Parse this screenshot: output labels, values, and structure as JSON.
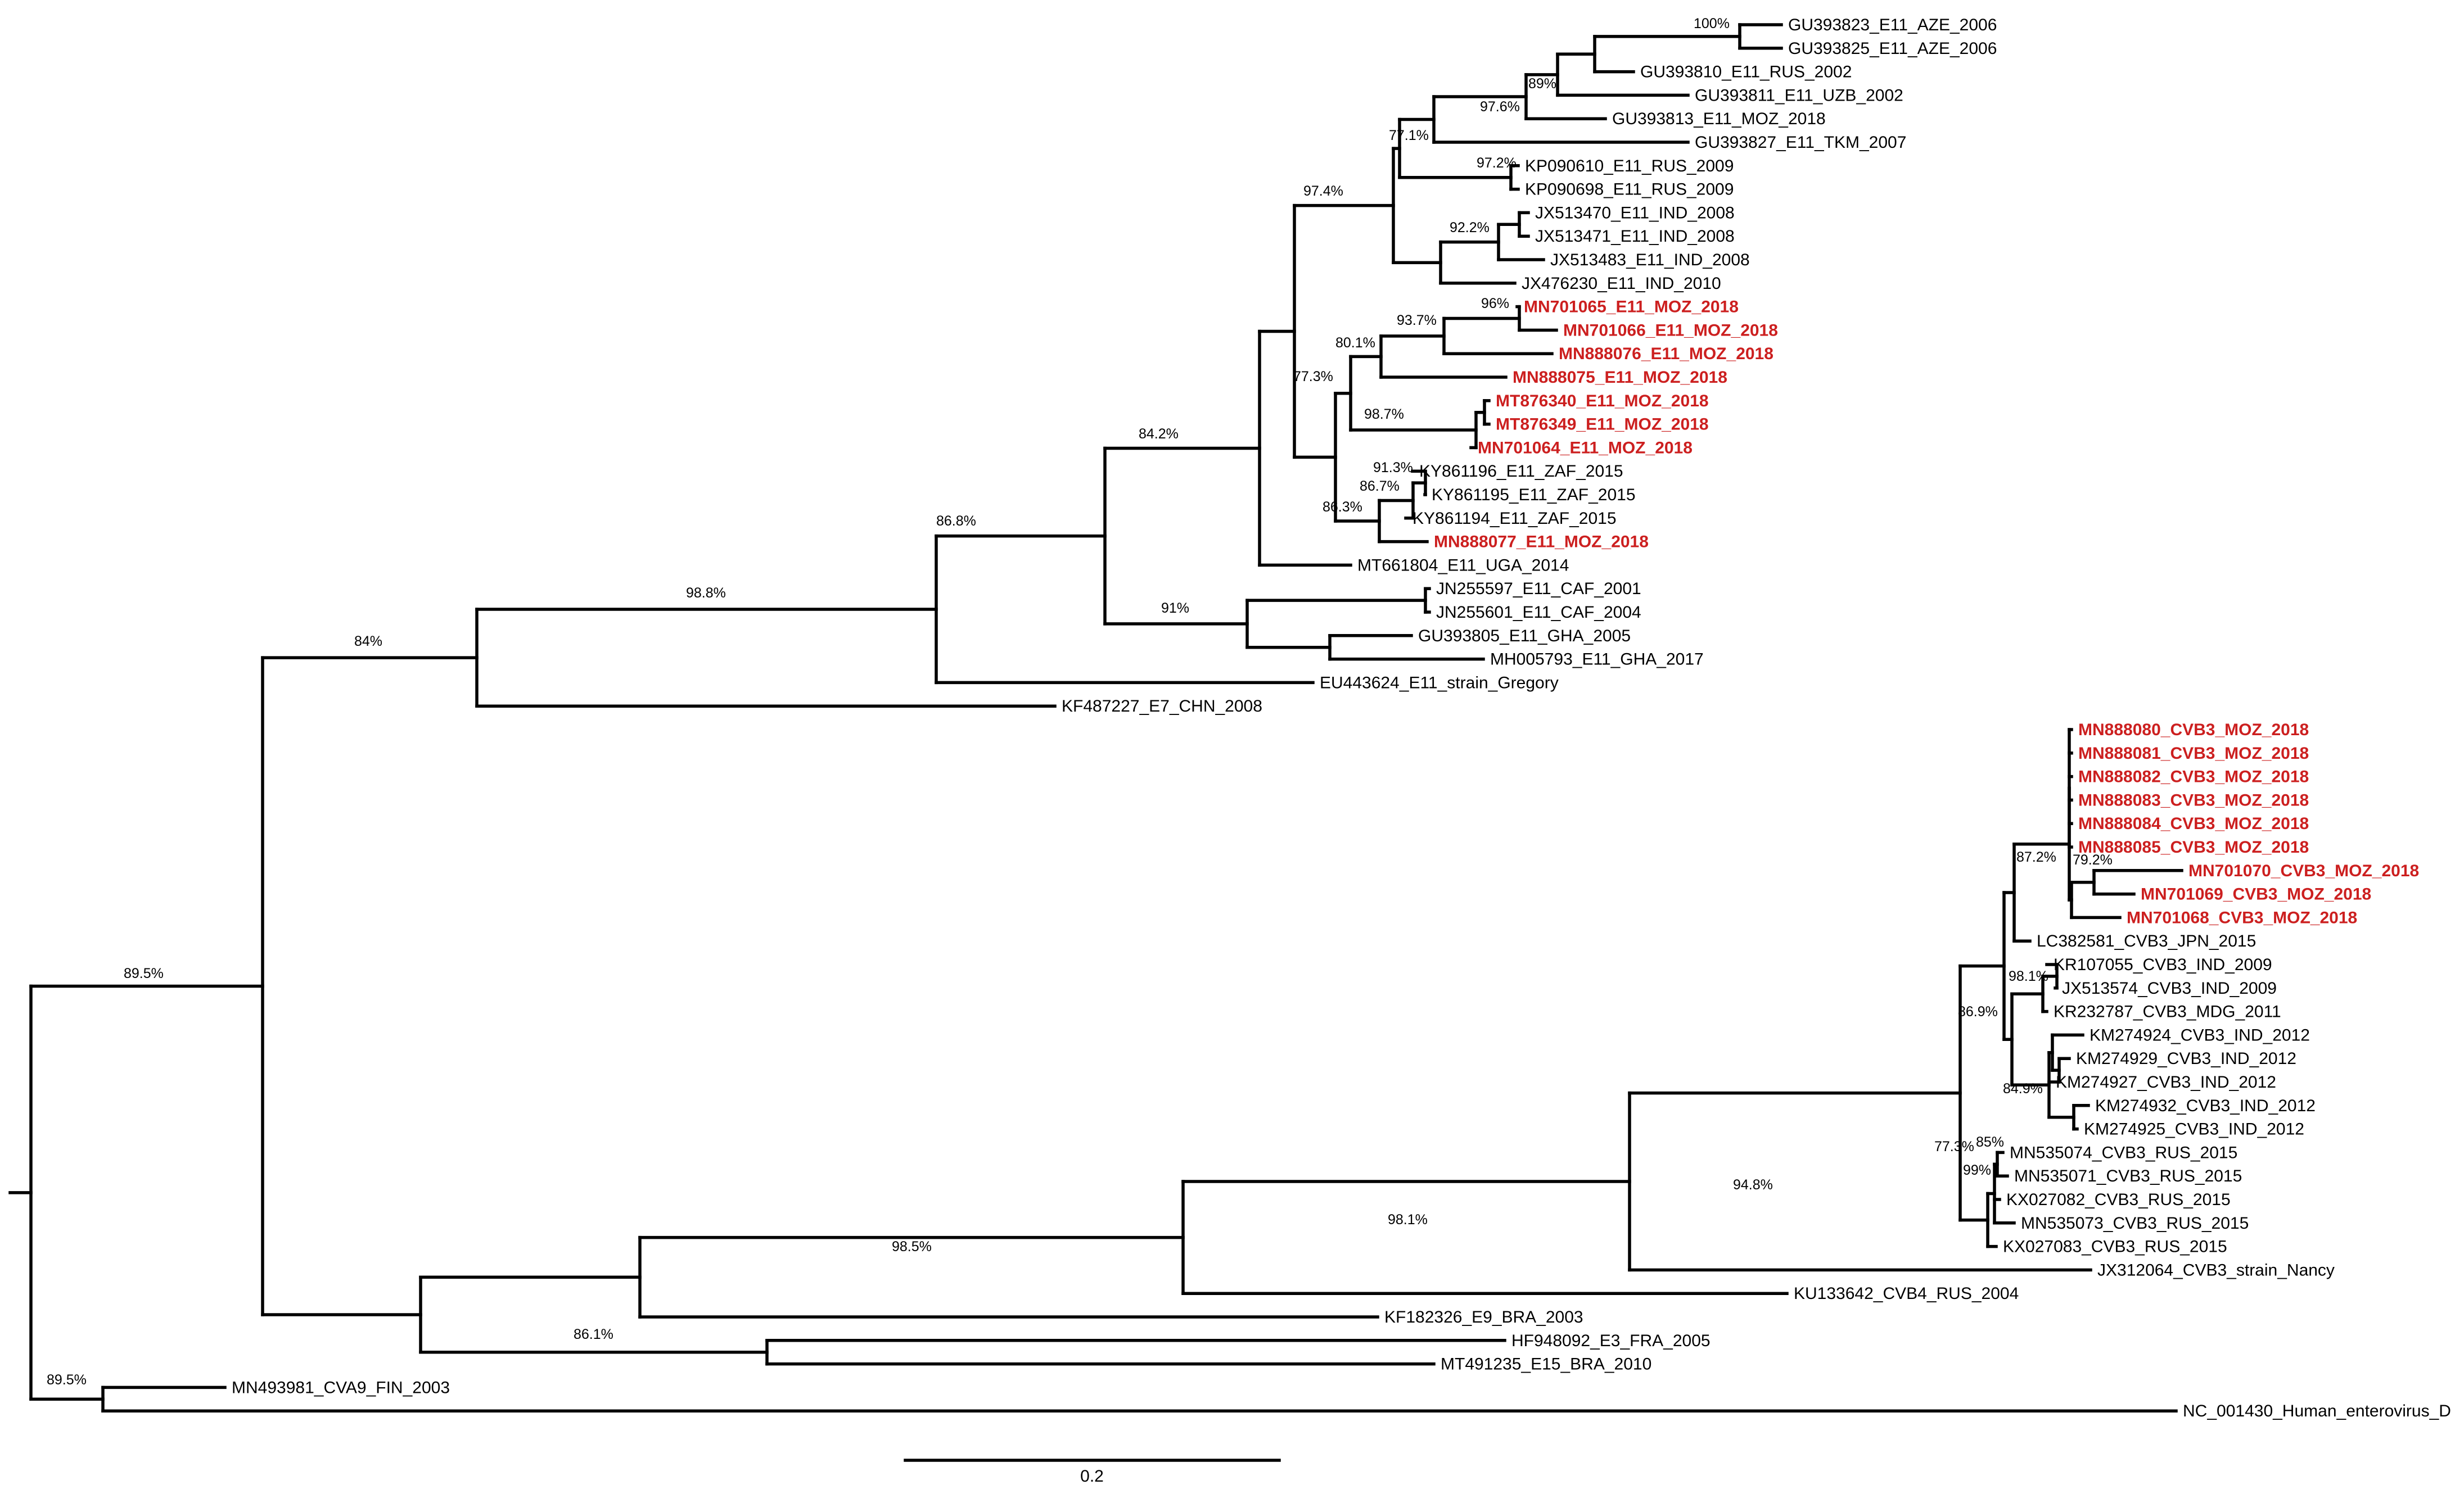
{
  "diagram": {
    "type": "phylogenetic-tree",
    "highlight_color": "#cc1f1f",
    "scale_bar_label": "0.2"
  },
  "tips": [
    {
      "id": "t1",
      "label": "GU393823_E11_AZE_2006"
    },
    {
      "id": "t2",
      "label": "GU393825_E11_AZE_2006"
    },
    {
      "id": "t3",
      "label": "GU393810_E11_RUS_2002"
    },
    {
      "id": "t4",
      "label": "GU393811_E11_UZB_2002"
    },
    {
      "id": "t5",
      "label": "GU393813_E11_MOZ_2018"
    },
    {
      "id": "t6",
      "label": "GU393827_E11_TKM_2007"
    },
    {
      "id": "t7",
      "label": "KP090610_E11_RUS_2009"
    },
    {
      "id": "t8",
      "label": "KP090698_E11_RUS_2009"
    },
    {
      "id": "t9",
      "label": "JX513470_E11_IND_2008"
    },
    {
      "id": "t10",
      "label": "JX513471_E11_IND_2008"
    },
    {
      "id": "t11",
      "label": "JX513483_E11_IND_2008"
    },
    {
      "id": "t12",
      "label": "JX476230_E11_IND_2010"
    },
    {
      "id": "t13",
      "label": "MN701065_E11_MOZ_2018",
      "highlight": true
    },
    {
      "id": "t14",
      "label": "MN701066_E11_MOZ_2018",
      "highlight": true
    },
    {
      "id": "t15",
      "label": "MN888076_E11_MOZ_2018",
      "highlight": true
    },
    {
      "id": "t16",
      "label": "MN888075_E11_MOZ_2018",
      "highlight": true
    },
    {
      "id": "t17",
      "label": "MT876340_E11_MOZ_2018",
      "highlight": true
    },
    {
      "id": "t18",
      "label": "MT876349_E11_MOZ_2018",
      "highlight": true
    },
    {
      "id": "t19",
      "label": "MN701064_E11_MOZ_2018",
      "highlight": true
    },
    {
      "id": "t20",
      "label": "KY861196_E11_ZAF_2015"
    },
    {
      "id": "t21",
      "label": "KY861195_E11_ZAF_2015"
    },
    {
      "id": "t22",
      "label": "KY861194_E11_ZAF_2015"
    },
    {
      "id": "t23",
      "label": "MN888077_E11_MOZ_2018",
      "highlight": true
    },
    {
      "id": "t24",
      "label": "MT661804_E11_UGA_2014"
    },
    {
      "id": "t25",
      "label": "JN255597_E11_CAF_2001"
    },
    {
      "id": "t26",
      "label": "JN255601_E11_CAF_2004"
    },
    {
      "id": "t27",
      "label": "GU393805_E11_GHA_2005"
    },
    {
      "id": "t28",
      "label": "MH005793_E11_GHA_2017"
    },
    {
      "id": "t29",
      "label": "EU443624_E11_strain_Gregory"
    },
    {
      "id": "t30",
      "label": "KF487227_E7_CHN_2008"
    },
    {
      "id": "t31",
      "label": "MN888080_CVB3_MOZ_2018",
      "highlight": true
    },
    {
      "id": "t32",
      "label": "MN888081_CVB3_MOZ_2018",
      "highlight": true
    },
    {
      "id": "t33",
      "label": "MN888082_CVB3_MOZ_2018",
      "highlight": true
    },
    {
      "id": "t34",
      "label": "MN888083_CVB3_MOZ_2018",
      "highlight": true
    },
    {
      "id": "t35",
      "label": "MN888084_CVB3_MOZ_2018",
      "highlight": true
    },
    {
      "id": "t36",
      "label": "MN888085_CVB3_MOZ_2018",
      "highlight": true
    },
    {
      "id": "t37",
      "label": "MN701070_CVB3_MOZ_2018",
      "highlight": true
    },
    {
      "id": "t38",
      "label": "MN701069_CVB3_MOZ_2018",
      "highlight": true
    },
    {
      "id": "t39",
      "label": "MN701068_CVB3_MOZ_2018",
      "highlight": true
    },
    {
      "id": "t40",
      "label": "LC382581_CVB3_JPN_2015"
    },
    {
      "id": "t41",
      "label": "KR107055_CVB3_IND_2009"
    },
    {
      "id": "t42",
      "label": "JX513574_CVB3_IND_2009"
    },
    {
      "id": "t43",
      "label": "KR232787_CVB3_MDG_2011"
    },
    {
      "id": "t44",
      "label": "KM274924_CVB3_IND_2012"
    },
    {
      "id": "t45",
      "label": "KM274929_CVB3_IND_2012"
    },
    {
      "id": "t46",
      "label": "KM274927_CVB3_IND_2012"
    },
    {
      "id": "t47",
      "label": "KM274932_CVB3_IND_2012"
    },
    {
      "id": "t48",
      "label": "KM274925_CVB3_IND_2012"
    },
    {
      "id": "t49",
      "label": "MN535074_CVB3_RUS_2015"
    },
    {
      "id": "t50",
      "label": "MN535071_CVB3_RUS_2015"
    },
    {
      "id": "t51",
      "label": "KX027082_CVB3_RUS_2015"
    },
    {
      "id": "t52",
      "label": "MN535073_CVB3_RUS_2015"
    },
    {
      "id": "t53",
      "label": "KX027083_CVB3_RUS_2015"
    },
    {
      "id": "t54",
      "label": "JX312064_CVB3_strain_Nancy"
    },
    {
      "id": "t55",
      "label": "KU133642_CVB4_RUS_2004"
    },
    {
      "id": "t56",
      "label": "KF182326_E9_BRA_2003"
    },
    {
      "id": "t57",
      "label": "HF948092_E3_FRA_2005"
    },
    {
      "id": "t58",
      "label": "MT491235_E15_BRA_2010"
    },
    {
      "id": "t59",
      "label": "MN493981_CVA9_FIN_2003"
    },
    {
      "id": "t60",
      "label": "NC_001430_Human_enterovirus_D"
    }
  ],
  "support_values": [
    {
      "id": "s1",
      "node": "GU393823 / GU393825",
      "value": "100%"
    },
    {
      "id": "s2",
      "node": "GU393823 ... GU393811",
      "value": "89%"
    },
    {
      "id": "s3",
      "node": "GU393823 ... GU393827",
      "value": "97.6%"
    },
    {
      "id": "s4",
      "node": "Asian E11 clade",
      "value": "77.1%"
    },
    {
      "id": "s5",
      "node": "KP090610 / KP090698",
      "value": "97.2%"
    },
    {
      "id": "s6",
      "node": "Asian + Mozambique E11",
      "value": "97.4%"
    },
    {
      "id": "s7",
      "node": "JX513470 ... JX476230",
      "value": "92.2%"
    },
    {
      "id": "s8",
      "node": "MN701065 / MN701066",
      "value": "96%"
    },
    {
      "id": "s9",
      "node": "MN701065 ... MN888076",
      "value": "93.7%"
    },
    {
      "id": "s10",
      "node": "MN701065 ... MN888075",
      "value": "80.1%"
    },
    {
      "id": "s11",
      "node": "Mozambique E11 clade",
      "value": "77.3%"
    },
    {
      "id": "s12",
      "node": "MT876340 ... MN701064",
      "value": "98.7%"
    },
    {
      "id": "s13",
      "node": "KY861196 / KY861195",
      "value": "91.3%"
    },
    {
      "id": "s14",
      "node": "KY861196 ... KY861194",
      "value": "86.7%"
    },
    {
      "id": "s15",
      "node": "ZAF + MN888077",
      "value": "86.3%"
    },
    {
      "id": "s16",
      "node": "E11 without CAF/GHA",
      "value": "84.2%"
    },
    {
      "id": "s17",
      "node": "CAF / GHA E11",
      "value": "91%"
    },
    {
      "id": "s18",
      "node": "E11 without Gregory",
      "value": "86.8%"
    },
    {
      "id": "s19",
      "node": "E11 clade",
      "value": "98.8%"
    },
    {
      "id": "s20",
      "node": "E11 + E7",
      "value": "84%"
    },
    {
      "id": "s21",
      "node": "Ingroup",
      "value": "89.5%"
    },
    {
      "id": "s22",
      "node": "MN701070 ... MN701068",
      "value": "79.2%"
    },
    {
      "id": "s23",
      "node": "Mozambique CVB3 + JPN",
      "value": "87.2%"
    },
    {
      "id": "s24",
      "node": "KR107055 ... KR232787",
      "value": "98.1%"
    },
    {
      "id": "s25",
      "node": "KM2749xx IND 2012",
      "value": "84.9%"
    },
    {
      "id": "s26",
      "node": "CVB3 Asia/Africa",
      "value": "86.9%"
    },
    {
      "id": "s27",
      "node": "MN535074 / MN535071",
      "value": "85%"
    },
    {
      "id": "s28",
      "node": "RUS 2015 subgroup",
      "value": "99%"
    },
    {
      "id": "s29",
      "node": "CVB3 modern",
      "value": "77.3%"
    },
    {
      "id": "s30",
      "node": "CVB3 clade",
      "value": "94.8%"
    },
    {
      "id": "s31",
      "node": "CVB3 + CVB4",
      "value": "98.1%"
    },
    {
      "id": "s32",
      "node": "CVB + E9",
      "value": "98.5%"
    },
    {
      "id": "s33",
      "node": "E3 / E15",
      "value": "86.1%"
    },
    {
      "id": "s34",
      "node": "CVA9 + Human enterovirus D",
      "value": "89.5%"
    }
  ]
}
